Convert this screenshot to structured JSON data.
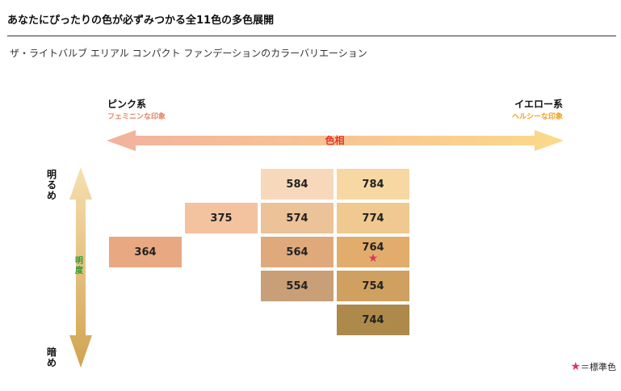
{
  "header": {
    "title": "あなたにぴったりの色が必ずみつかる全11色の多色展開",
    "subtitle": "ザ・ライトバルブ エリアル コンパクト ファンデーションのカラーバリエーション"
  },
  "hue_axis": {
    "label": "色相",
    "left_title": "ピンク系",
    "left_caption": "フェミニンな印象",
    "right_title": "イエロー系",
    "right_caption": "ヘルシーな印象"
  },
  "lightness_axis": {
    "label": "明度",
    "top_label": "明るめ",
    "bottom_label": "暗め"
  },
  "swatches": [
    {
      "code": "364",
      "hue_col": 0,
      "row": 2,
      "color": "#e8a882"
    },
    {
      "code": "375",
      "hue_col": 1,
      "row": 1,
      "color": "#f3c3a0"
    },
    {
      "code": "584",
      "hue_col": 2,
      "row": 0,
      "color": "#f7d8bb"
    },
    {
      "code": "574",
      "hue_col": 2,
      "row": 1,
      "color": "#ecc298"
    },
    {
      "code": "564",
      "hue_col": 2,
      "row": 2,
      "color": "#e0a97c"
    },
    {
      "code": "554",
      "hue_col": 2,
      "row": 3,
      "color": "#c99f77"
    },
    {
      "code": "784",
      "hue_col": 3,
      "row": 0,
      "color": "#f7d8a3"
    },
    {
      "code": "774",
      "hue_col": 3,
      "row": 1,
      "color": "#efc98f"
    },
    {
      "code": "764",
      "hue_col": 3,
      "row": 2,
      "color": "#e2ad6c",
      "standard": true
    },
    {
      "code": "754",
      "hue_col": 3,
      "row": 3,
      "color": "#cfa060"
    },
    {
      "code": "744",
      "hue_col": 3,
      "row": 4,
      "color": "#ad8a4b"
    }
  ],
  "legend": {
    "star": "★",
    "text": "＝標準色"
  },
  "colors": {
    "hue_start": "#f2b29d",
    "hue_end": "#fbd98a",
    "light_top": "#f7dfb0",
    "light_bottom": "#d1a350",
    "star": "#e0306a"
  }
}
